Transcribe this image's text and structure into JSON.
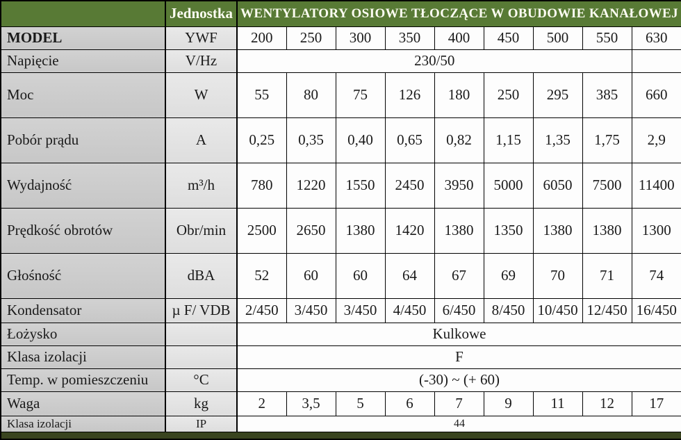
{
  "header": {
    "corner": "",
    "unit_col": "Jednostka",
    "title": "WENTYLATORY OSIOWE TŁOCZĄCE W OBUDOWIE KANAŁOWEJ"
  },
  "colors": {
    "header_green": "#587a35",
    "bottom_bar": "#39441f",
    "label_column_bg": "#cccccc",
    "unit_column_bg": "#e3e3e3"
  },
  "table": {
    "models_row_label": "MODEL",
    "models_unit": "YWF",
    "models": [
      "200",
      "250",
      "300",
      "350",
      "400",
      "450",
      "500",
      "550",
      "630"
    ]
  },
  "rows": [
    {
      "label": "MODEL",
      "unit": "YWF",
      "type": "values",
      "h": "s",
      "bold_label": true,
      "cells": [
        "200",
        "250",
        "300",
        "350",
        "400",
        "450",
        "500",
        "550",
        "630"
      ]
    },
    {
      "label": "Napięcie",
      "unit": "V/Hz",
      "type": "span8",
      "h": "s",
      "span": "230/50",
      "last": ""
    },
    {
      "label": "Moc",
      "unit": "W",
      "type": "values",
      "h": "l",
      "cells": [
        "55",
        "80",
        "75",
        "126",
        "180",
        "250",
        "295",
        "385",
        "660"
      ]
    },
    {
      "label": "Pobór prądu",
      "unit": "A",
      "type": "values",
      "h": "l",
      "cells": [
        "0,25",
        "0,35",
        "0,40",
        "0,65",
        "0,82",
        "1,15",
        "1,35",
        "1,75",
        "2,9"
      ]
    },
    {
      "label": "Wydajność",
      "unit": "m³/h",
      "type": "values",
      "h": "l",
      "cells": [
        "780",
        "1220",
        "1550",
        "2450",
        "3950",
        "5000",
        "6050",
        "7500",
        "11400"
      ]
    },
    {
      "label": "Prędkość obrotów",
      "unit": "Obr/min",
      "type": "values",
      "h": "l",
      "cells": [
        "2500",
        "2650",
        "1380",
        "1420",
        "1380",
        "1350",
        "1380",
        "1380",
        "1300"
      ]
    },
    {
      "label": "Głośność",
      "unit": "dBA",
      "type": "values",
      "h": "l",
      "cells": [
        "52",
        "60",
        "60",
        "64",
        "67",
        "69",
        "70",
        "71",
        "74"
      ]
    },
    {
      "label": "Kondensator",
      "unit": "µ F/ VDB",
      "type": "values",
      "h": "m",
      "cells": [
        "2/450",
        "3/450",
        "3/450",
        "4/450",
        "6/450",
        "8/450",
        "10/450",
        "12/450",
        "16/450"
      ]
    },
    {
      "label": "Łożysko",
      "unit": "",
      "type": "span9",
      "h": "s",
      "span": "Kulkowe"
    },
    {
      "label": "Klasa izolacji",
      "unit": "",
      "type": "span9",
      "h": "s",
      "span": "F"
    },
    {
      "label": "Temp. w pomieszczeniu",
      "unit": "°C",
      "type": "span9",
      "h": "s",
      "span": "(-30) ~ (+ 60)"
    },
    {
      "label": "Waga",
      "unit": "kg",
      "type": "values",
      "h": "m",
      "cells": [
        "2",
        "3,5",
        "5",
        "6",
        "7",
        "9",
        "11",
        "12",
        "17"
      ]
    },
    {
      "label": "Klasa izolacji",
      "unit": "IP",
      "type": "span9",
      "h": "xs",
      "small": true,
      "span": "44"
    }
  ]
}
